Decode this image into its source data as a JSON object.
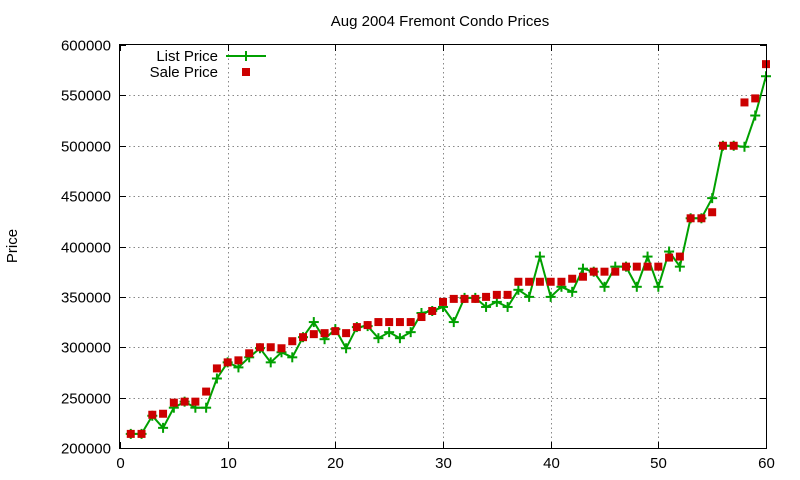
{
  "chart_data": {
    "type": "line",
    "title": "Aug 2004 Fremont Condo Prices",
    "xlabel": "",
    "ylabel": "Price",
    "xlim": [
      0,
      60
    ],
    "ylim": [
      200000,
      600000
    ],
    "xticks": [
      0,
      10,
      20,
      30,
      40,
      50,
      60
    ],
    "yticks": [
      200000,
      250000,
      300000,
      350000,
      400000,
      450000,
      500000,
      550000,
      600000
    ],
    "grid": true,
    "legend_position": "top-left",
    "series": [
      {
        "name": "List Price",
        "style": "linespoints",
        "color": "#00a000",
        "marker": "plus",
        "x": [
          1,
          2,
          3,
          4,
          5,
          6,
          7,
          8,
          9,
          10,
          11,
          12,
          13,
          14,
          15,
          16,
          17,
          18,
          19,
          20,
          21,
          22,
          23,
          24,
          25,
          26,
          27,
          28,
          29,
          30,
          31,
          32,
          33,
          34,
          35,
          36,
          37,
          38,
          39,
          40,
          41,
          42,
          43,
          44,
          45,
          46,
          47,
          48,
          49,
          50,
          51,
          52,
          53,
          54,
          55,
          56,
          57,
          58,
          59,
          60
        ],
        "y": [
          214000,
          214000,
          232000,
          220000,
          240000,
          246000,
          240000,
          240000,
          269000,
          285000,
          280000,
          290000,
          299000,
          285000,
          295000,
          290000,
          310000,
          325000,
          308000,
          318000,
          299000,
          320000,
          321000,
          309000,
          315000,
          309000,
          315000,
          334000,
          336000,
          340000,
          325000,
          349000,
          349000,
          340000,
          345000,
          340000,
          357000,
          350000,
          390000,
          350000,
          360000,
          355000,
          378000,
          375000,
          360000,
          380000,
          380000,
          360000,
          390000,
          360000,
          395000,
          380000,
          428000,
          428000,
          448000,
          500000,
          500000,
          499000,
          530000,
          569000
        ]
      },
      {
        "name": "Sale Price",
        "style": "points",
        "color": "#cc0000",
        "marker": "square",
        "x": [
          1,
          2,
          3,
          4,
          5,
          6,
          7,
          8,
          9,
          10,
          11,
          12,
          13,
          14,
          15,
          16,
          17,
          18,
          19,
          20,
          21,
          22,
          23,
          24,
          25,
          26,
          27,
          28,
          29,
          30,
          31,
          32,
          33,
          34,
          35,
          36,
          37,
          38,
          39,
          40,
          41,
          42,
          43,
          44,
          45,
          46,
          47,
          48,
          49,
          50,
          51,
          52,
          53,
          54,
          55,
          56,
          57,
          58,
          59,
          60
        ],
        "y": [
          214000,
          214000,
          233000,
          234000,
          245000,
          246000,
          246000,
          256000,
          279000,
          285000,
          287000,
          294000,
          300000,
          300000,
          299000,
          306000,
          310000,
          313000,
          314000,
          316000,
          314000,
          320000,
          322000,
          325000,
          325000,
          325000,
          325000,
          330000,
          336000,
          345000,
          348000,
          348000,
          348000,
          350000,
          352000,
          352000,
          365000,
          365000,
          365000,
          365000,
          365000,
          368000,
          370000,
          375000,
          375000,
          375000,
          380000,
          380000,
          380000,
          380000,
          389000,
          390000,
          428000,
          428000,
          434000,
          500000,
          500000,
          543000,
          547000,
          581000
        ]
      }
    ]
  }
}
